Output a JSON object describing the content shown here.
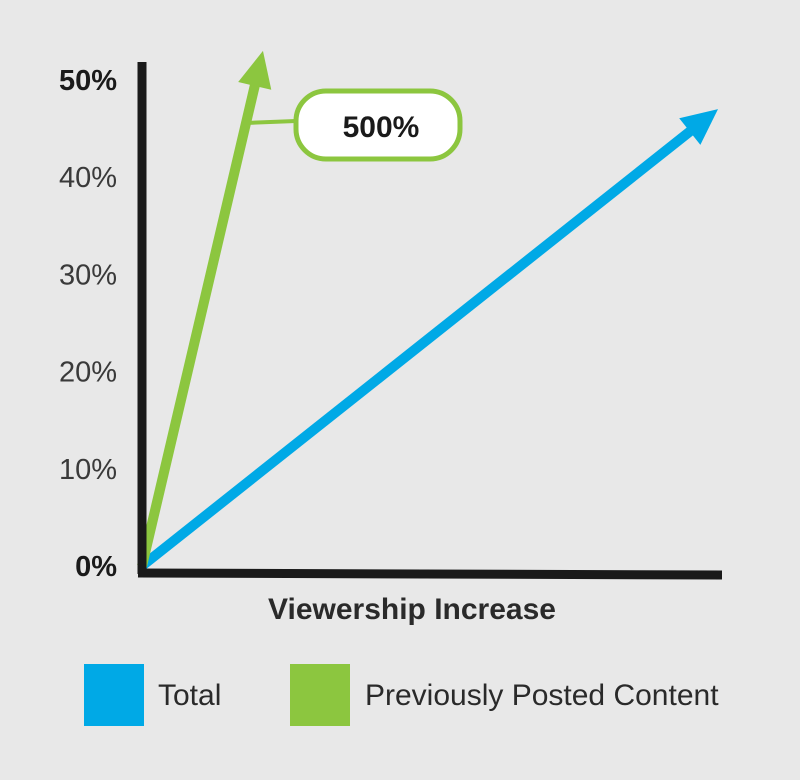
{
  "chart_data": {
    "type": "line",
    "title": "",
    "xlabel": "Viewership Increase",
    "ylabel": "",
    "ylim": [
      0,
      50
    ],
    "y_ticks": [
      {
        "label": "0%",
        "value": 0,
        "bold": true
      },
      {
        "label": "10%",
        "value": 10,
        "bold": false
      },
      {
        "label": "20%",
        "value": 20,
        "bold": false
      },
      {
        "label": "30%",
        "value": 30,
        "bold": false
      },
      {
        "label": "40%",
        "value": 40,
        "bold": false
      },
      {
        "label": "50%",
        "value": 50,
        "bold": true
      }
    ],
    "grid": false,
    "legend_position": "bottom",
    "series": [
      {
        "name": "Total",
        "color": "#00a9e6",
        "x": [
          0,
          1
        ],
        "y": [
          0,
          47
        ]
      },
      {
        "name": "Previously Posted Content",
        "color": "#8cc63f",
        "x": [
          0,
          0.21
        ],
        "y": [
          0,
          53
        ]
      }
    ],
    "annotations": [
      {
        "text": "500%",
        "series": "Previously Posted Content"
      }
    ]
  }
}
